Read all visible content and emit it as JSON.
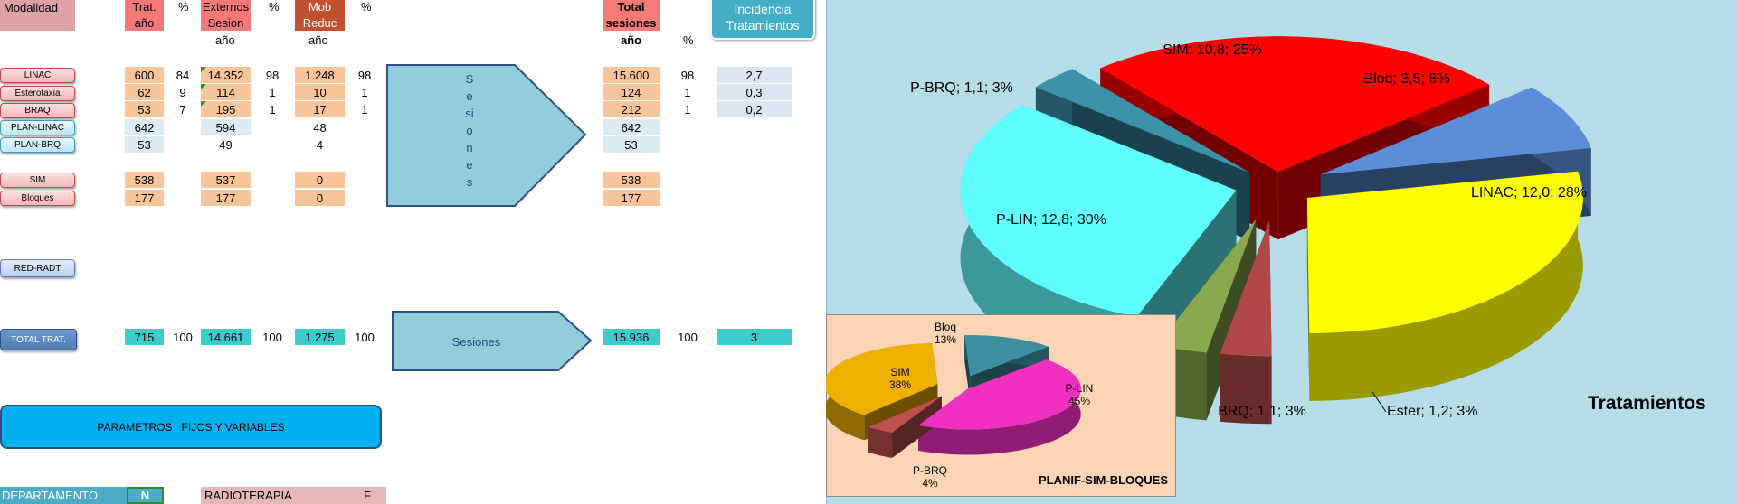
{
  "headers": {
    "modalidad": "Modalidad",
    "trat_ano": [
      "Trat.",
      "año"
    ],
    "pct1": "%",
    "externos": [
      "Externos",
      "Sesion"
    ],
    "pct2": "%",
    "mob": [
      "Mob",
      "Reduc"
    ],
    "pct3": "%",
    "total": [
      "Total",
      "sesiones"
    ],
    "incidencia": [
      "Incidencia",
      "Tratamientos"
    ],
    "sub_ano1": "año",
    "sub_ano2": "año",
    "sub_ano3": "año",
    "sub_pct": "%"
  },
  "rows": [
    {
      "label": "LINAC",
      "trat": "600",
      "p1": "84",
      "ext": "14.352",
      "p2": "98",
      "mob": "1.248",
      "p3": "98",
      "total": "15.600",
      "p4": "98",
      "inc": "2,7"
    },
    {
      "label": "Esterotaxia",
      "trat": "62",
      "p1": "9",
      "ext": "114",
      "p2": "1",
      "mob": "10",
      "p3": "1",
      "total": "124",
      "p4": "1",
      "inc": "0,3"
    },
    {
      "label": "BRAQ",
      "trat": "53",
      "p1": "7",
      "ext": "195",
      "p2": "1",
      "mob": "17",
      "p3": "1",
      "total": "212",
      "p4": "1",
      "inc": "0,2"
    },
    {
      "label": "PLAN-LINAC",
      "trat": "642",
      "ext": "594",
      "mob": "48",
      "total": "642"
    },
    {
      "label": "PLAN-BRQ",
      "trat": "53",
      "ext": "49",
      "mob": "4",
      "total": "53"
    },
    {
      "label": "SIM",
      "trat": "538",
      "ext": "537",
      "mob": "0",
      "total": "538"
    },
    {
      "label": "Bloques",
      "trat": "177",
      "ext": "177",
      "mob": "0",
      "total": "177"
    }
  ],
  "red_radt": "RED-RADT",
  "totals": {
    "label": "TOTAL TRAT.",
    "trat": "715",
    "p1": "100",
    "ext": "14.661",
    "p2": "100",
    "mob": "1.275",
    "p3": "100",
    "total": "15.936",
    "p4": "100",
    "inc": "3"
  },
  "arrow_vertical": "Sesiones",
  "arrow_horizontal": "Sesiones",
  "parametros_button": "PARAMETROS   FIJOS Y VARIABLES",
  "departamento": {
    "label": "DEPARTAMENTO",
    "code": "N",
    "name": "RADIOTERAPIA",
    "flag": "F"
  },
  "chart_data": [
    {
      "type": "pie",
      "title": "Tratamientos",
      "slices": [
        {
          "label": "SIM",
          "value": 10.8,
          "percent": 25,
          "color": "#ff0000",
          "text": "SIM; 10,8; 25%"
        },
        {
          "label": "Bloq",
          "value": 3.5,
          "percent": 8,
          "color": "#5b8ed8",
          "text": "Bloq; 3,5; 8%"
        },
        {
          "label": "LINAC",
          "value": 12.0,
          "percent": 28,
          "color": "#ffff00",
          "text": "LINAC; 12,0; 28%"
        },
        {
          "label": "Ester",
          "value": 1.2,
          "percent": 3,
          "color": "#b04848",
          "text": "Ester; 1,2; 3%"
        },
        {
          "label": "BRQ",
          "value": 1.1,
          "percent": 3,
          "color": "#8aa84e",
          "text": "BRQ; 1,1; 3%"
        },
        {
          "label": "P-LIN",
          "value": 12.8,
          "percent": 30,
          "color": "#60ffff",
          "text": "P-LIN; 12,8; 30%"
        },
        {
          "label": "P-BRQ",
          "value": 1.1,
          "percent": 3,
          "color": "#3c92a8",
          "text": "P-BRQ; 1,1; 3%"
        }
      ]
    },
    {
      "type": "pie",
      "title": "PLANIF-SIM-BLOQUES",
      "slices": [
        {
          "label": "Bloq",
          "percent": 13,
          "color": "#3b8fa0",
          "text": [
            "Bloq",
            "13%"
          ]
        },
        {
          "label": "P-LIN",
          "percent": 45,
          "color": "#f030c0",
          "text": [
            "P-LIN",
            "45%"
          ]
        },
        {
          "label": "P-BRQ",
          "percent": 4,
          "color": "#c0504d",
          "text": [
            "P-BRQ",
            "4%"
          ]
        },
        {
          "label": "SIM",
          "percent": 38,
          "color": "#f0b000",
          "text": [
            "SIM",
            "38%"
          ]
        }
      ]
    }
  ]
}
